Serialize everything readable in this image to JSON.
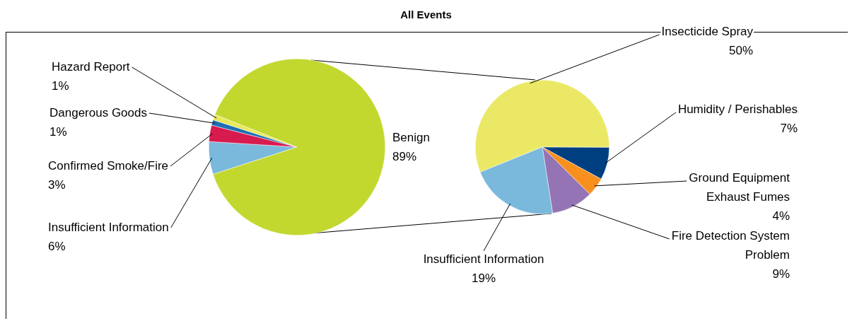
{
  "chart_data": [
    {
      "type": "pie",
      "title": "All Events",
      "categories": [
        "Insufficient Information",
        "Confirmed Smoke/Fire",
        "Dangerous Goods",
        "Hazard Report",
        "Benign"
      ],
      "values": [
        6,
        3,
        1,
        1,
        89
      ],
      "value_labels": [
        "6%",
        "3%",
        "1%",
        "1%",
        "89%"
      ],
      "colors": [
        "#7ab8dc",
        "#d81b4f",
        "#1f6fb5",
        "#e8e85a",
        "#c2d82f"
      ]
    },
    {
      "type": "pie",
      "categories": [
        "Insecticide Spray",
        "Humidity / Perishables",
        "Ground Equipment Exhaust Fumes",
        "Fire Detection System Problem",
        "Insufficient Information"
      ],
      "values": [
        50,
        7,
        4,
        9,
        19
      ],
      "value_labels": [
        "50%",
        "7%",
        "4%",
        "9%",
        "19%"
      ],
      "colors": [
        "#ebe865",
        "#003f7f",
        "#f7901e",
        "#9474b4",
        "#7ab8dc"
      ]
    }
  ]
}
